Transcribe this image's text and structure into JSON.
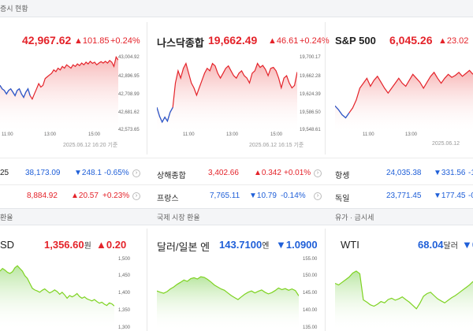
{
  "header": {
    "title": "증시 현황"
  },
  "indices": [
    {
      "name": "",
      "value": "42,967.62",
      "change": "▲101.85",
      "pct": "+0.24%",
      "yticks": [
        "43,004.92",
        "42,896.95",
        "42,708.99",
        "42,681.62",
        "42,573.65"
      ],
      "xticks": [
        "11:00",
        "13:00",
        "15:00"
      ],
      "stamp": "2025.06.12 16:20 기준"
    },
    {
      "name": "나스닥종합",
      "value": "19,662.49",
      "change": "▲46.61",
      "pct": "+0.24%",
      "yticks": [
        "19,700.17",
        "19,662.28",
        "19,624.39",
        "19,586.50",
        "19,548.61"
      ],
      "xticks": [
        "11:00",
        "13:00",
        "15:00"
      ],
      "stamp": "2025.06.12 16:15 기준"
    },
    {
      "name": "S&P 500",
      "value": "6,045.26",
      "change": "▲23.02",
      "pct": "",
      "yticks": [],
      "xticks": [
        "11:00",
        "13:00"
      ],
      "stamp": "2025.06.12"
    }
  ],
  "rows": [
    [
      {
        "name": "25",
        "value": "38,173.09",
        "change": "▼248.1",
        "pct": "-0.65%",
        "color": "blue"
      },
      {
        "name": "상해종합",
        "value": "3,402.66",
        "change": "▲0.342",
        "pct": "+0.01%",
        "color": "red"
      },
      {
        "name": "항셍",
        "value": "24,035.38",
        "change": "▼331.56",
        "pct": "-1",
        "color": "blue"
      }
    ],
    [
      {
        "name": "",
        "value": "8,884.92",
        "change": "▲20.57",
        "pct": "+0.23%",
        "color": "red"
      },
      {
        "name": "프랑스",
        "value": "7,765.11",
        "change": "▼10.79",
        "pct": "-0.14%",
        "color": "blue"
      },
      {
        "name": "독일",
        "value": "23,771.45",
        "change": "▼177.45",
        "pct": "-0",
        "color": "blue"
      }
    ]
  ],
  "sections": [
    "환율",
    "국제 시장 환율",
    "유가 · 금시세"
  ],
  "fx": [
    {
      "name": "SD",
      "value": "1,356.60",
      "unit": "원",
      "change": "▲0.20",
      "color": "red",
      "yticks": [
        "1,500",
        "1,450",
        "1,400",
        "1,350",
        "1,300"
      ]
    },
    {
      "name": "달러/일본 엔",
      "value": "143.7100",
      "unit": "엔",
      "change": "▼1.0900",
      "color": "blue",
      "yticks": [
        "155.00",
        "150.00",
        "145.00",
        "140.00",
        "135.00"
      ]
    },
    {
      "name": "WTI",
      "value": "68.04",
      "unit": "달러",
      "change": "▼0",
      "color": "blue",
      "yticks": []
    }
  ],
  "chart_data": [
    {
      "type": "area",
      "title": "",
      "ylim": [
        42573.65,
        43004.92
      ],
      "xticks": [
        "11:00",
        "13:00",
        "15:00"
      ],
      "series": [
        {
          "values": [
            42820,
            42800,
            42790,
            42770,
            42790,
            42800,
            42780,
            42760,
            42790,
            42800,
            42770,
            42750,
            42780,
            42800,
            42760,
            42740,
            42770,
            42800,
            42830,
            42810,
            42820,
            42860,
            42870,
            42880,
            42890,
            42910,
            42900,
            42920,
            42910,
            42930,
            42920,
            42940,
            42930,
            42920,
            42940,
            42930,
            42945,
            42935,
            42950,
            42940,
            42955,
            42945,
            42960,
            42948,
            42955,
            42940,
            42950,
            42958,
            42950,
            42960,
            42950,
            42965,
            42955,
            42930,
            42985,
            42967.62
          ]
        }
      ]
    },
    {
      "type": "area",
      "title": "",
      "ylim": [
        19548.61,
        19700.17
      ],
      "xticks": [
        "11:00",
        "13:00",
        "15:00"
      ],
      "series": [
        {
          "values": [
            19590,
            19572,
            19560,
            19570,
            19562,
            19580,
            19590,
            19640,
            19665,
            19650,
            19670,
            19680,
            19660,
            19640,
            19630,
            19615,
            19630,
            19645,
            19660,
            19670,
            19665,
            19680,
            19675,
            19660,
            19650,
            19660,
            19670,
            19675,
            19665,
            19655,
            19650,
            19660,
            19665,
            19655,
            19650,
            19640,
            19660,
            19665,
            19680,
            19672,
            19676,
            19668,
            19655,
            19670,
            19672,
            19665,
            19650,
            19630,
            19650,
            19655,
            19640,
            19630,
            19635,
            19662.49
          ]
        }
      ]
    },
    {
      "type": "area",
      "title": "",
      "ylim": [
        5990,
        6065
      ],
      "xticks": [
        "11:00",
        "13:00"
      ],
      "series": [
        {
          "values": [
            6012,
            6008,
            6003,
            6000,
            6005,
            6010,
            6018,
            6030,
            6035,
            6040,
            6032,
            6038,
            6042,
            6036,
            6030,
            6025,
            6030,
            6035,
            6040,
            6035,
            6032,
            6038,
            6044,
            6040,
            6036,
            6030,
            6036,
            6042,
            6046,
            6040,
            6035,
            6040,
            6044,
            6041,
            6043,
            6046,
            6042,
            6045,
            6048,
            6044
          ]
        }
      ]
    },
    {
      "type": "area",
      "title": "",
      "ylim": [
        1300,
        1500
      ],
      "series": [
        {
          "values": [
            1462,
            1470,
            1465,
            1458,
            1455,
            1460,
            1472,
            1478,
            1470,
            1462,
            1448,
            1440,
            1425,
            1410,
            1405,
            1402,
            1398,
            1404,
            1408,
            1402,
            1396,
            1400,
            1405,
            1400,
            1392,
            1398,
            1390,
            1380,
            1388,
            1384,
            1388,
            1394,
            1385,
            1380,
            1384,
            1378,
            1375,
            1372,
            1376,
            1370,
            1365,
            1368,
            1362,
            1358,
            1366,
            1363,
            1356.6
          ]
        }
      ]
    },
    {
      "type": "area",
      "title": "",
      "ylim": [
        135,
        155
      ],
      "series": [
        {
          "values": [
            145.2,
            144.8,
            144.5,
            145.0,
            145.8,
            146.4,
            147.2,
            147.8,
            148.5,
            148.1,
            148.9,
            149.2,
            148.8,
            149.5,
            149.3,
            148.7,
            147.9,
            147.0,
            146.4,
            145.8,
            145.4,
            144.6,
            143.8,
            143.2,
            142.6,
            143.4,
            144.2,
            144.8,
            145.2,
            144.6,
            145.1,
            145.5,
            144.8,
            144.3,
            144.7,
            145.3,
            146.1,
            145.6,
            145.9,
            145.4,
            145.8,
            145.3,
            143.71
          ]
        }
      ]
    },
    {
      "type": "area",
      "title": "",
      "ylim": [
        55,
        75
      ],
      "series": [
        {
          "values": [
            67.5,
            67.0,
            67.8,
            68.6,
            69.4,
            70.6,
            71.2,
            70.4,
            62.5,
            61.8,
            61.0,
            60.6,
            61.2,
            62.0,
            61.6,
            62.6,
            63.0,
            62.4,
            62.8,
            63.4,
            62.6,
            61.8,
            60.8,
            59.8,
            61.5,
            63.6,
            64.4,
            64.8,
            63.8,
            62.8,
            62.2,
            61.6,
            62.4,
            63.2,
            63.8,
            64.6,
            65.4,
            66.2,
            67.0,
            68.04
          ]
        }
      ]
    }
  ]
}
